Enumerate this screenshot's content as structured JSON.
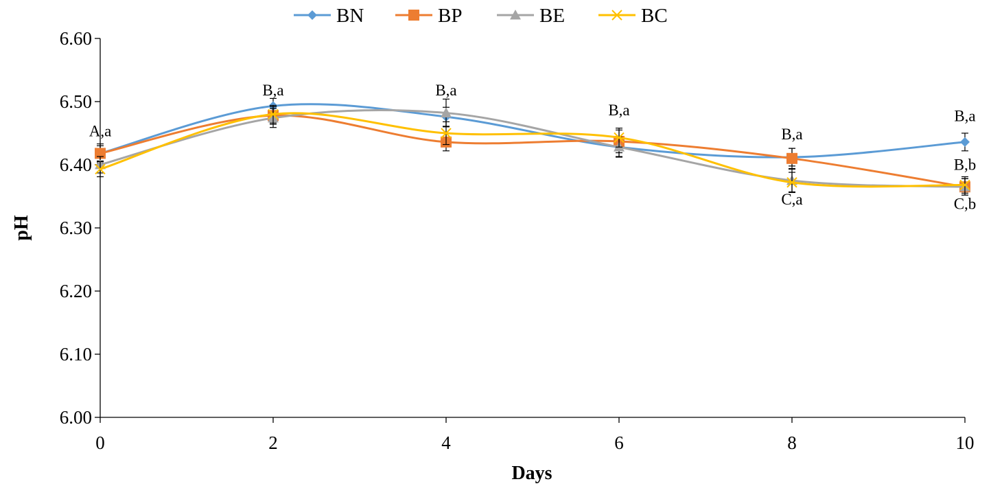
{
  "chart_data": {
    "type": "line",
    "title": "",
    "xlabel": "Days",
    "ylabel": "pH",
    "x": [
      0,
      2,
      4,
      6,
      8,
      10
    ],
    "x_tick_labels": [
      "0",
      "2",
      "4",
      "6",
      "8",
      "10"
    ],
    "y_tick_labels": [
      "6.00",
      "6.10",
      "6.20",
      "6.30",
      "6.40",
      "6.50",
      "6.60"
    ],
    "xlim": [
      0,
      10
    ],
    "ylim": [
      6.0,
      6.6
    ],
    "grid": false,
    "smoothed": true,
    "legend_position": "top",
    "series": [
      {
        "name": "BN",
        "color": "#5B9BD5",
        "marker": "diamond",
        "values": [
          6.418,
          6.493,
          6.476,
          6.428,
          6.412,
          6.436
        ],
        "errors": [
          0.012,
          0.012,
          0.015,
          0.015,
          0.014,
          0.014
        ]
      },
      {
        "name": "BP",
        "color": "#ED7D31",
        "marker": "square",
        "values": [
          6.418,
          6.478,
          6.436,
          6.437,
          6.41,
          6.365
        ],
        "errors": [
          0.015,
          0.014,
          0.014,
          0.018,
          0.016,
          0.013
        ]
      },
      {
        "name": "BE",
        "color": "#A5A5A5",
        "marker": "triangle",
        "values": [
          6.4,
          6.474,
          6.482,
          6.428,
          6.375,
          6.365
        ],
        "errors": [
          0.013,
          0.015,
          0.022,
          0.016,
          0.018,
          0.013
        ]
      },
      {
        "name": "BC",
        "color": "#FFC000",
        "marker": "x",
        "values": [
          6.393,
          6.48,
          6.45,
          6.443,
          6.372,
          6.368
        ],
        "errors": [
          0.012,
          0.014,
          0.018,
          0.015,
          0.016,
          0.013
        ]
      }
    ],
    "annotations": [
      {
        "text": "A,a",
        "x": 0,
        "y": 6.445
      },
      {
        "text": "B,a",
        "x": 2,
        "y": 6.51
      },
      {
        "text": "B,a",
        "x": 4,
        "y": 6.51
      },
      {
        "text": "B,a",
        "x": 6,
        "y": 6.478
      },
      {
        "text": "B,a",
        "x": 8,
        "y": 6.44
      },
      {
        "text": "B,a",
        "x": 10,
        "y": 6.469
      },
      {
        "text": "B,b",
        "x": 10,
        "y": 6.392
      },
      {
        "text": "C,a",
        "x": 8,
        "y": 6.337
      },
      {
        "text": "C,b",
        "x": 10,
        "y": 6.33
      }
    ]
  }
}
